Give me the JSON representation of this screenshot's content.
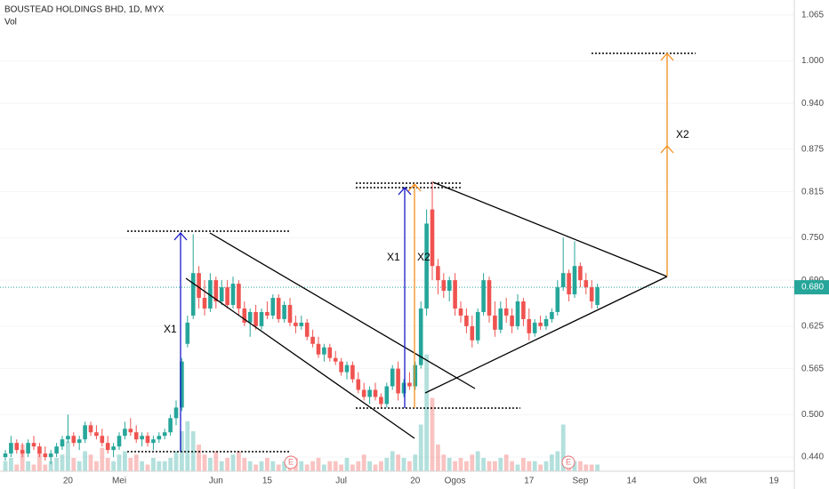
{
  "chart_data": {
    "type": "candlestick",
    "title": "BOUSTEAD HOLDINGS BHD, 1D, MYX",
    "subtitle": "Vol",
    "up_color": "#26a69a",
    "down_color": "#ef5350",
    "ylim": [
      0.42,
      1.086
    ],
    "yticks": [
      1.065,
      {
        "value": 1,
        "label": "1.000"
      },
      {
        "value": 0.94,
        "label": "0.940"
      },
      0.875,
      0.815,
      {
        "value": 0.75,
        "label": "0.750"
      },
      {
        "value": 0.69,
        "label": "0.690"
      },
      0.625,
      0.565,
      {
        "value": 0.5,
        "label": "0.500"
      },
      {
        "value": 0.44,
        "label": "0.440"
      }
    ],
    "last_price": 0.68,
    "last_price_label": "0.680",
    "volume_lim": [
      0,
      40
    ],
    "annotations": [
      "X1",
      "X1",
      "X2",
      "X2"
    ],
    "events": [
      "E",
      "E"
    ],
    "categories": [
      null,
      null,
      null,
      null,
      null,
      null,
      null,
      null,
      null,
      null,
      null,
      "20",
      null,
      null,
      null,
      null,
      null,
      null,
      null,
      null,
      "Mei",
      null,
      null,
      null,
      null,
      null,
      null,
      null,
      null,
      null,
      null,
      null,
      null,
      null,
      null,
      null,
      null,
      "Jun",
      null,
      null,
      null,
      null,
      null,
      null,
      null,
      null,
      "15",
      null,
      null,
      null,
      null,
      null,
      null,
      null,
      null,
      null,
      null,
      null,
      null,
      "Jul",
      null,
      null,
      null,
      null,
      null,
      null,
      null,
      null,
      null,
      null,
      null,
      null,
      "20",
      null,
      null,
      null,
      null,
      null,
      null,
      "Ogos",
      null,
      null,
      null,
      null,
      null,
      null,
      null,
      null,
      null,
      null,
      null,
      null,
      "17",
      null,
      null,
      null,
      null,
      null,
      null,
      null,
      null,
      "Sep",
      null,
      null,
      null,
      null,
      null,
      null,
      null,
      null,
      "14",
      null,
      null,
      null,
      null,
      null,
      null,
      null,
      null,
      null,
      null,
      null,
      "Okt",
      null,
      null,
      null,
      null,
      null,
      null,
      null,
      null,
      null,
      null,
      null,
      null,
      "19",
      null,
      null,
      null
    ],
    "candles": [
      [
        0.44,
        0.45,
        0.435,
        0.445
      ],
      [
        0.445,
        0.47,
        0.44,
        0.46
      ],
      [
        0.46,
        0.465,
        0.445,
        0.45
      ],
      [
        0.45,
        0.46,
        0.44,
        0.445
      ],
      [
        0.445,
        0.465,
        0.44,
        0.46
      ],
      [
        0.46,
        0.47,
        0.45,
        0.455
      ],
      [
        0.455,
        0.46,
        0.44,
        0.445
      ],
      [
        0.445,
        0.455,
        0.435,
        0.44
      ],
      [
        0.44,
        0.45,
        0.43,
        0.445
      ],
      [
        0.445,
        0.46,
        0.44,
        0.455
      ],
      [
        0.455,
        0.47,
        0.45,
        0.465
      ],
      [
        0.465,
        0.5,
        0.46,
        0.47
      ],
      [
        0.47,
        0.475,
        0.455,
        0.46
      ],
      [
        0.46,
        0.47,
        0.45,
        0.465
      ],
      [
        0.465,
        0.49,
        0.46,
        0.485
      ],
      [
        0.485,
        0.49,
        0.47,
        0.475
      ],
      [
        0.475,
        0.485,
        0.465,
        0.47
      ],
      [
        0.47,
        0.48,
        0.455,
        0.46
      ],
      [
        0.46,
        0.47,
        0.445,
        0.45
      ],
      [
        0.45,
        0.46,
        0.44,
        0.455
      ],
      [
        0.455,
        0.475,
        0.45,
        0.47
      ],
      [
        0.47,
        0.49,
        0.465,
        0.48
      ],
      [
        0.48,
        0.495,
        0.47,
        0.475
      ],
      [
        0.475,
        0.485,
        0.46,
        0.465
      ],
      [
        0.465,
        0.475,
        0.455,
        0.47
      ],
      [
        0.47,
        0.475,
        0.455,
        0.46
      ],
      [
        0.46,
        0.47,
        0.45,
        0.465
      ],
      [
        0.465,
        0.475,
        0.46,
        0.47
      ],
      [
        0.47,
        0.48,
        0.465,
        0.475
      ],
      [
        0.475,
        0.5,
        0.47,
        0.495
      ],
      [
        0.495,
        0.52,
        0.485,
        0.51
      ],
      [
        0.51,
        0.58,
        0.505,
        0.575
      ],
      [
        0.6,
        0.64,
        0.595,
        0.63
      ],
      [
        0.64,
        0.755,
        0.635,
        0.7
      ],
      [
        0.7,
        0.71,
        0.65,
        0.665
      ],
      [
        0.665,
        0.69,
        0.64,
        0.65
      ],
      [
        0.65,
        0.7,
        0.645,
        0.69
      ],
      [
        0.69,
        0.695,
        0.65,
        0.66
      ],
      [
        0.66,
        0.69,
        0.655,
        0.68
      ],
      [
        0.68,
        0.69,
        0.65,
        0.655
      ],
      [
        0.655,
        0.695,
        0.65,
        0.685
      ],
      [
        0.685,
        0.69,
        0.64,
        0.65
      ],
      [
        0.65,
        0.66,
        0.625,
        0.63
      ],
      [
        0.63,
        0.65,
        0.61,
        0.645
      ],
      [
        0.645,
        0.655,
        0.62,
        0.625
      ],
      [
        0.625,
        0.65,
        0.62,
        0.645
      ],
      [
        0.645,
        0.66,
        0.635,
        0.64
      ],
      [
        0.64,
        0.67,
        0.635,
        0.665
      ],
      [
        0.665,
        0.67,
        0.63,
        0.635
      ],
      [
        0.635,
        0.66,
        0.63,
        0.655
      ],
      [
        0.655,
        0.665,
        0.625,
        0.63
      ],
      [
        0.63,
        0.64,
        0.615,
        0.625
      ],
      [
        0.625,
        0.64,
        0.62,
        0.63
      ],
      [
        0.63,
        0.635,
        0.605,
        0.61
      ],
      [
        0.61,
        0.62,
        0.595,
        0.6
      ],
      [
        0.6,
        0.61,
        0.58,
        0.585
      ],
      [
        0.585,
        0.6,
        0.575,
        0.595
      ],
      [
        0.595,
        0.6,
        0.575,
        0.58
      ],
      [
        0.58,
        0.59,
        0.57,
        0.575
      ],
      [
        0.575,
        0.58,
        0.555,
        0.56
      ],
      [
        0.56,
        0.575,
        0.55,
        0.57
      ],
      [
        0.57,
        0.575,
        0.545,
        0.55
      ],
      [
        0.55,
        0.56,
        0.53,
        0.535
      ],
      [
        0.535,
        0.545,
        0.52,
        0.525
      ],
      [
        0.525,
        0.54,
        0.515,
        0.535
      ],
      [
        0.535,
        0.545,
        0.52,
        0.525
      ],
      [
        0.525,
        0.53,
        0.51,
        0.515
      ],
      [
        0.515,
        0.545,
        0.51,
        0.54
      ],
      [
        0.54,
        0.57,
        0.535,
        0.565
      ],
      [
        0.565,
        0.575,
        0.52,
        0.53
      ],
      [
        0.53,
        0.55,
        0.525,
        0.545
      ],
      [
        0.545,
        0.56,
        0.535,
        0.54
      ],
      [
        0.54,
        0.575,
        0.535,
        0.57
      ],
      [
        0.57,
        0.66,
        0.565,
        0.65
      ],
      [
        0.65,
        0.79,
        0.64,
        0.77
      ],
      [
        0.79,
        0.83,
        0.69,
        0.71
      ],
      [
        0.71,
        0.72,
        0.67,
        0.69
      ],
      [
        0.69,
        0.7,
        0.665,
        0.675
      ],
      [
        0.675,
        0.695,
        0.66,
        0.69
      ],
      [
        0.69,
        0.7,
        0.64,
        0.65
      ],
      [
        0.65,
        0.66,
        0.63,
        0.64
      ],
      [
        0.64,
        0.65,
        0.615,
        0.625
      ],
      [
        0.625,
        0.64,
        0.595,
        0.605
      ],
      [
        0.605,
        0.65,
        0.6,
        0.645
      ],
      [
        0.645,
        0.7,
        0.64,
        0.69
      ],
      [
        0.69,
        0.695,
        0.63,
        0.64
      ],
      [
        0.64,
        0.66,
        0.61,
        0.62
      ],
      [
        0.62,
        0.66,
        0.615,
        0.65
      ],
      [
        0.65,
        0.665,
        0.63,
        0.64
      ],
      [
        0.64,
        0.65,
        0.615,
        0.625
      ],
      [
        0.625,
        0.67,
        0.62,
        0.66
      ],
      [
        0.66,
        0.665,
        0.625,
        0.635
      ],
      [
        0.635,
        0.65,
        0.605,
        0.615
      ],
      [
        0.615,
        0.635,
        0.61,
        0.63
      ],
      [
        0.63,
        0.64,
        0.62,
        0.625
      ],
      [
        0.625,
        0.64,
        0.62,
        0.635
      ],
      [
        0.635,
        0.65,
        0.63,
        0.645
      ],
      [
        0.645,
        0.69,
        0.64,
        0.68
      ],
      [
        0.68,
        0.75,
        0.675,
        0.7
      ],
      [
        0.7,
        0.705,
        0.66,
        0.67
      ],
      [
        0.67,
        0.745,
        0.665,
        0.71
      ],
      [
        0.71,
        0.715,
        0.68,
        0.69
      ],
      [
        0.69,
        0.7,
        0.67,
        0.68
      ],
      [
        0.68,
        0.69,
        0.65,
        0.66
      ],
      [
        0.655,
        0.685,
        0.65,
        0.68
      ],
      null,
      null,
      null,
      null,
      null,
      null,
      null,
      null,
      null,
      null,
      null,
      null,
      null,
      null,
      null,
      null,
      null,
      null,
      null,
      null,
      null,
      null,
      null,
      null,
      null,
      null,
      null,
      null,
      null,
      null,
      null,
      null,
      null,
      null
    ],
    "volume": [
      3,
      4,
      2,
      8,
      3,
      2,
      6,
      2,
      3,
      4,
      5,
      9,
      4,
      3,
      6,
      5,
      3,
      7,
      4,
      3,
      5,
      6,
      4,
      5,
      3,
      2,
      4,
      3,
      3,
      4,
      6,
      12,
      15,
      12,
      8,
      5,
      4,
      6,
      3,
      4,
      5,
      6,
      4,
      3,
      2,
      3,
      4,
      3,
      2,
      3,
      3,
      4,
      3,
      2,
      3,
      4,
      2,
      3,
      3,
      2,
      4,
      2,
      3,
      5,
      3,
      2,
      3,
      4,
      6,
      5,
      4,
      3,
      5,
      14,
      35,
      22,
      8,
      5,
      4,
      3,
      4,
      3,
      5,
      6,
      4,
      3,
      3,
      4,
      5,
      3,
      2,
      4,
      3,
      3,
      2,
      3,
      5,
      6,
      14,
      4,
      3,
      3,
      2,
      2,
      2,
      null,
      null,
      null,
      null,
      null,
      null,
      null,
      null,
      null,
      null,
      null,
      null,
      null,
      null,
      null,
      null,
      null,
      null,
      null,
      null,
      null,
      null,
      null,
      null,
      null,
      null,
      null,
      null,
      null,
      null,
      null,
      null,
      null,
      null
    ]
  }
}
